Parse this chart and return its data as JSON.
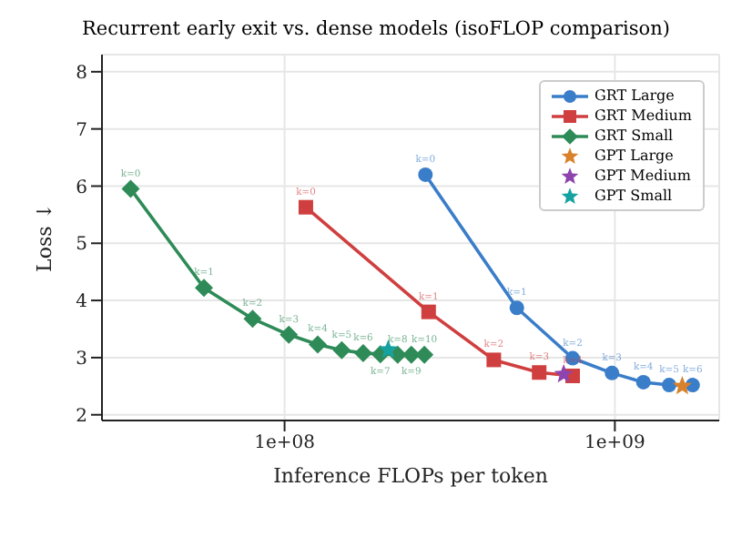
{
  "chart_data": {
    "type": "line",
    "title": "Recurrent early exit vs. dense models  (isoFLOP comparison)",
    "xlabel": "Inference FLOPs per token",
    "ylabel": "Loss ↓",
    "log": "x",
    "xlim": [
      28000000,
      2070000000
    ],
    "xticks": [
      {
        "value": 100000000,
        "label": "1e+08"
      },
      {
        "value": 1000000000,
        "label": "1e+09"
      }
    ],
    "ylim": [
      1.9,
      8.3
    ],
    "yticks": [
      2,
      3,
      4,
      5,
      6,
      7,
      8
    ],
    "grid": true,
    "legend": "top right",
    "series": [
      {
        "name": "GRT Large",
        "marker": "circle",
        "color": "#3a7dc9",
        "x": [
          267000000,
          505000000,
          745000000,
          980000000,
          1220000000,
          1460000000,
          1720000000
        ],
        "values": [
          6.2,
          3.87,
          2.99,
          2.73,
          2.57,
          2.52,
          2.52
        ]
      },
      {
        "name": "GRT Medium",
        "marker": "square",
        "color": "#d03f3f",
        "x": [
          116000000,
          273000000,
          430000000,
          590000000,
          745000000
        ],
        "values": [
          5.63,
          3.8,
          2.96,
          2.74,
          2.68
        ]
      },
      {
        "name": "GRT Small",
        "marker": "diamond",
        "color": "#2e8b57",
        "x": [
          34200000,
          57000000,
          80000000,
          103000000,
          126000000,
          149000000,
          173000000,
          195000000,
          220000000,
          242000000,
          265000000
        ],
        "values": [
          5.95,
          4.22,
          3.68,
          3.4,
          3.23,
          3.13,
          3.08,
          3.06,
          3.05,
          3.05,
          3.05
        ]
      },
      {
        "name": "GPT Large",
        "type": "scatter",
        "marker": "star",
        "color": "#d9822b",
        "x": [
          1600000000
        ],
        "values": [
          2.5
        ]
      },
      {
        "name": "GPT Medium",
        "type": "scatter",
        "marker": "star",
        "color": "#8e44ad",
        "x": [
          700000000
        ],
        "values": [
          2.71
        ]
      },
      {
        "name": "GPT Small",
        "type": "scatter",
        "marker": "star",
        "color": "#17a2a2",
        "x": [
          206000000
        ],
        "values": [
          3.14
        ]
      }
    ],
    "annotations": [
      {
        "text": "k=0",
        "x": 267000000,
        "y": 6.2
      },
      {
        "text": "k=1",
        "x": 505000000,
        "y": 3.87
      },
      {
        "text": "k=2",
        "x": 745000000,
        "y": 2.99
      },
      {
        "text": "k=3",
        "x": 980000000,
        "y": 2.73
      },
      {
        "text": "k=4",
        "x": 1220000000,
        "y": 2.57
      },
      {
        "text": "k=5",
        "x": 1460000000,
        "y": 2.52
      },
      {
        "text": "k=6",
        "x": 1720000000,
        "y": 2.52
      },
      {
        "text": "k=0",
        "x": 116000000,
        "y": 5.63
      },
      {
        "text": "k=1",
        "x": 273000000,
        "y": 3.8
      },
      {
        "text": "k=2",
        "x": 430000000,
        "y": 2.96
      },
      {
        "text": "k=3",
        "x": 590000000,
        "y": 2.74
      },
      {
        "text": "k=4",
        "x": 745000000,
        "y": 2.68
      },
      {
        "text": "k=0",
        "x": 34200000,
        "y": 5.95
      },
      {
        "text": "k=1",
        "x": 57000000,
        "y": 4.22
      },
      {
        "text": "k=2",
        "x": 80000000,
        "y": 3.68
      },
      {
        "text": "k=3",
        "x": 103000000,
        "y": 3.4
      },
      {
        "text": "k=4",
        "x": 126000000,
        "y": 3.23
      },
      {
        "text": "k=5",
        "x": 149000000,
        "y": 3.13
      },
      {
        "text": "k=6",
        "x": 173000000,
        "y": 3.08
      },
      {
        "text": "k=7",
        "x": 195000000,
        "y": 3.06
      },
      {
        "text": "k=8",
        "x": 220000000,
        "y": 3.05
      },
      {
        "text": "k=9",
        "x": 242000000,
        "y": 3.05
      },
      {
        "text": "k=10",
        "x": 265000000,
        "y": 3.05
      }
    ]
  }
}
